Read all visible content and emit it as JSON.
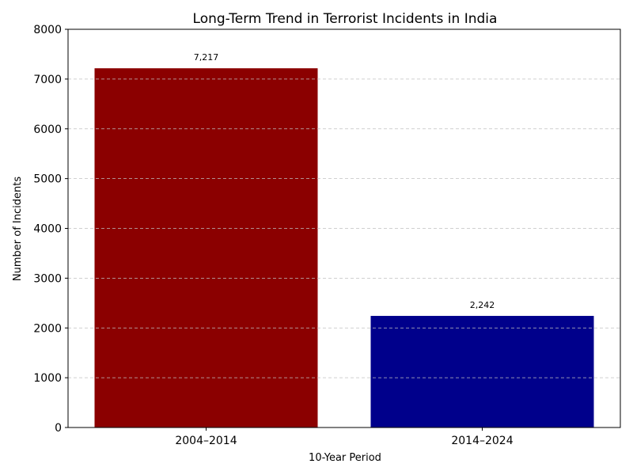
{
  "chart_data": {
    "type": "bar",
    "title": "Long-Term Trend in Terrorist Incidents in India",
    "xlabel": "10-Year Period",
    "ylabel": "Number of Incidents",
    "categories": [
      "2004–2014",
      "2014–2024"
    ],
    "values": [
      7217,
      2242
    ],
    "data_labels": [
      "7,217",
      "2,242"
    ],
    "colors": [
      "#8b0000",
      "#00008b"
    ],
    "ylim": [
      0,
      8000
    ],
    "yticks": [
      0,
      1000,
      2000,
      3000,
      4000,
      5000,
      6000,
      7000,
      8000
    ],
    "grid": "y-dashed",
    "grid_color": "#c0c0c0"
  }
}
